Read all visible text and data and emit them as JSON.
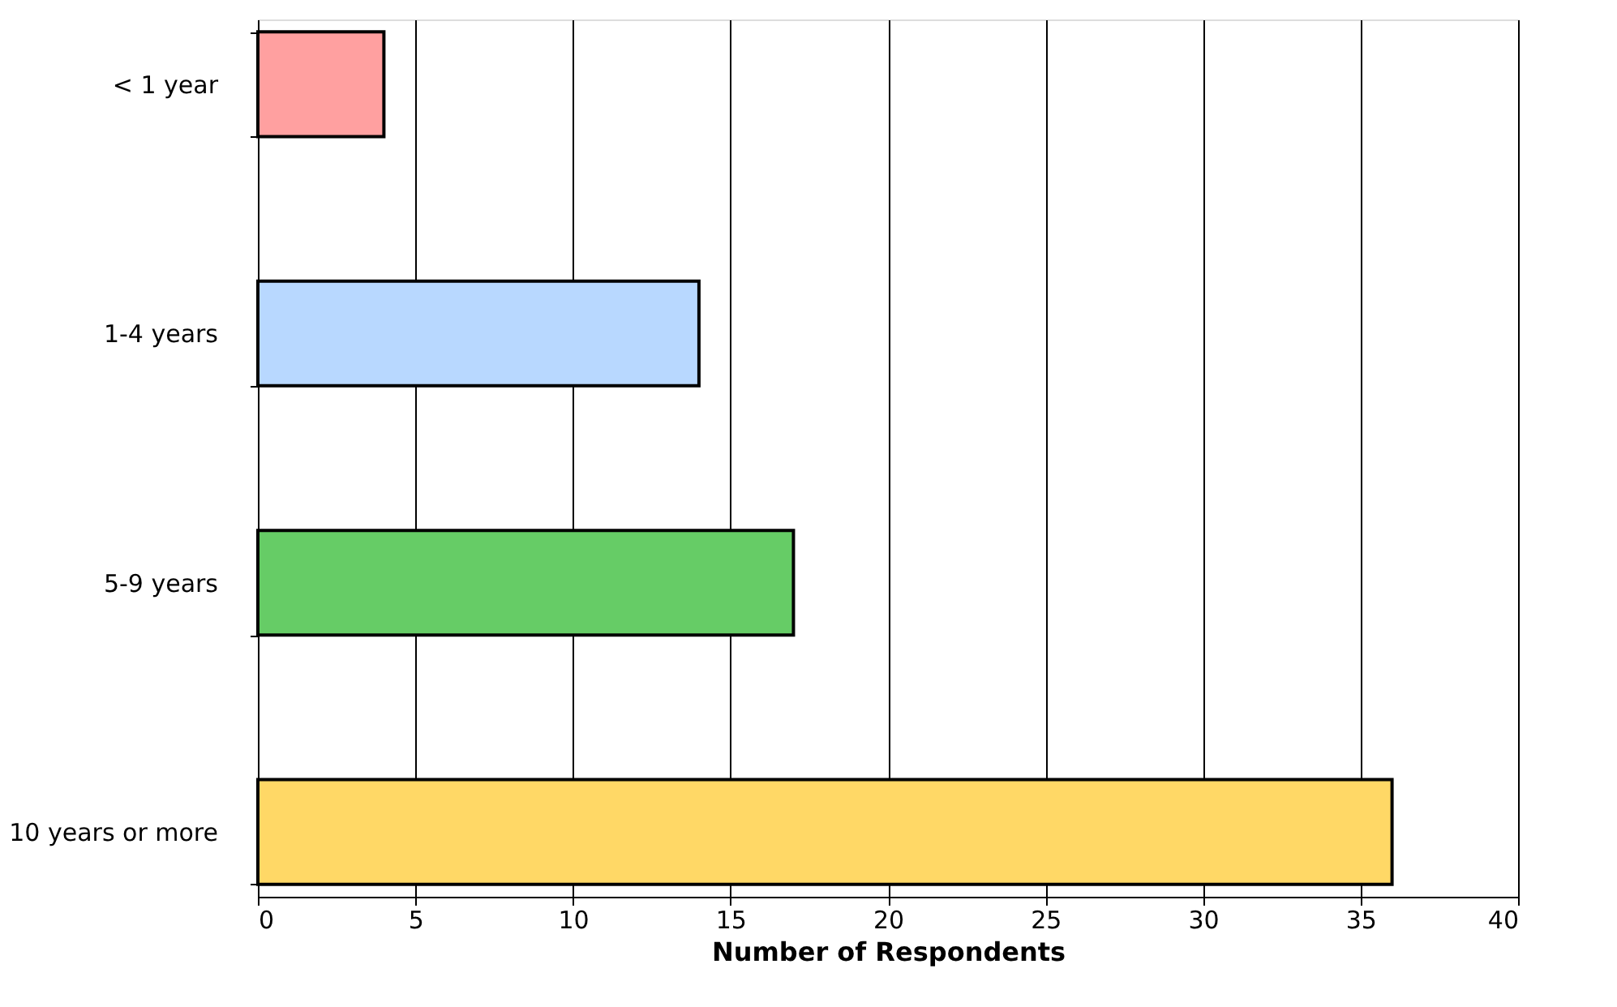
{
  "chart_data": {
    "type": "bar",
    "orientation": "horizontal",
    "xlabel": "Number of Respondents",
    "categories": [
      "< 1 year",
      "1-4 years",
      "5-9 years",
      "10 years or more"
    ],
    "values": [
      4,
      14,
      17,
      36
    ],
    "colors": [
      "#ffa0a0",
      "#b8d8ff",
      "#66cc66",
      "#ffd866"
    ],
    "xlim": [
      0,
      40
    ],
    "xticks": [
      0,
      5,
      10,
      15,
      20,
      25,
      30,
      35,
      40
    ],
    "grid": "x"
  }
}
